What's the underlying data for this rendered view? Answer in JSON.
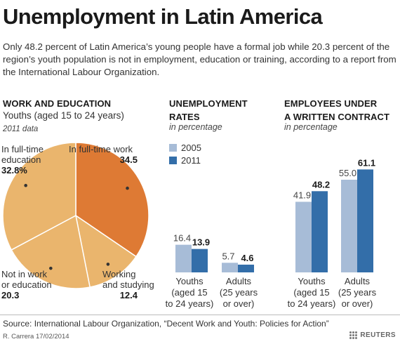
{
  "header": {
    "title": "Unemployment in Latin America",
    "subtitle": "Only 48.2 percent of Latin America’s young people have a formal job while 20.3 percent of the region’s youth population is not in employment, education or training, according to a report from the International Labour Organization."
  },
  "colors": {
    "pie_fulltime_work": "#de7a34",
    "pie_other": "#eab56d",
    "series_2005": "#a7bcd7",
    "series_2011": "#336ea9"
  },
  "chart_data": [
    {
      "type": "pie",
      "title": "WORK AND EDUCATION",
      "subtitle": "Youths (aged 15 to 24 years)",
      "note": "2011 data",
      "slices": [
        {
          "label_lines": [
            "In full-time work"
          ],
          "value": 34.5,
          "value_label": "34.5"
        },
        {
          "label_lines": [
            "Working",
            "and studying"
          ],
          "value": 12.4,
          "value_label": "12.4"
        },
        {
          "label_lines": [
            "Not in work",
            "or education"
          ],
          "value": 20.3,
          "value_label": "20.3"
        },
        {
          "label_lines": [
            "In full-time",
            "education"
          ],
          "value": 32.8,
          "value_label": "32.8%"
        }
      ]
    },
    {
      "type": "bar",
      "title_lines": [
        "UNEMPLOYMENT",
        "RATES"
      ],
      "unit": "in percentage",
      "categories": [
        [
          "Youths",
          "(aged 15",
          "to 24 years)"
        ],
        [
          "Adults",
          "(25 years",
          "or over)"
        ]
      ],
      "series": [
        {
          "name": "2005",
          "values": [
            16.4,
            5.7
          ]
        },
        {
          "name": "2011",
          "values": [
            13.9,
            4.6
          ]
        }
      ],
      "value_labels": [
        [
          "16.4",
          "5.7"
        ],
        [
          "13.9",
          "4.6"
        ]
      ],
      "ylim": [
        0,
        65
      ]
    },
    {
      "type": "bar",
      "title_lines": [
        "EMPLOYEES UNDER",
        "A WRITTEN CONTRACT"
      ],
      "unit": "in percentage",
      "categories": [
        [
          "Youths",
          "(aged 15",
          "to 24 years)"
        ],
        [
          "Adults",
          "(25 years",
          "or over)"
        ]
      ],
      "series": [
        {
          "name": "2005",
          "values": [
            41.9,
            55.0
          ]
        },
        {
          "name": "2011",
          "values": [
            48.2,
            61.1
          ]
        }
      ],
      "value_labels": [
        [
          "41.9",
          "55.0"
        ],
        [
          "48.2",
          "61.1"
        ]
      ],
      "ylim": [
        0,
        65
      ]
    }
  ],
  "footer": {
    "source": "Source: International Labour Organization, “Decent Work and Youth: Policies for Action”",
    "credit": "R. Carrera 17/02/2014",
    "brand": "REUTERS"
  }
}
